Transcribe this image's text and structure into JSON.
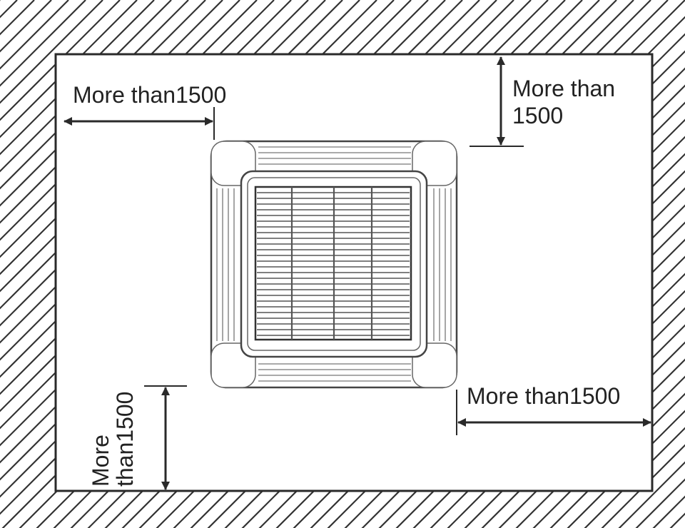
{
  "diagram": {
    "labels": {
      "left": "More than1500",
      "top_line1": "More than",
      "top_line2": "1500",
      "right": "More than1500",
      "bottom_line1": "More",
      "bottom_line2": "than1500"
    },
    "colors": {
      "line": "#2a2a2a",
      "hatch": "#333333",
      "background": "#ffffff"
    }
  }
}
